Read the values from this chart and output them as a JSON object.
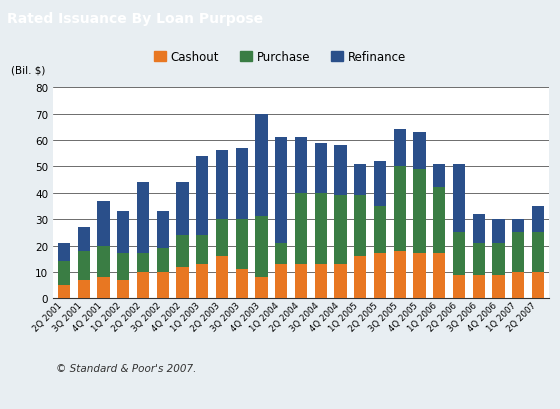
{
  "title": "Rated Issuance By Loan Purpose",
  "title_bg_color": "#6b8fa3",
  "title_text_color": "#ffffff",
  "ylabel": "(Bil. $)",
  "footer": "© Standard & Poor's 2007.",
  "categories": [
    "2Q 2001",
    "3Q 2001",
    "4Q 2001",
    "1Q 2002",
    "2Q 2002",
    "3Q 2002",
    "4Q 2002",
    "1Q 2003",
    "2Q 2003",
    "3Q 2003",
    "4Q 2003",
    "1Q 2004",
    "2Q 2004",
    "3Q 2004",
    "4Q 2004",
    "1Q 2005",
    "2Q 2005",
    "3Q 2005",
    "4Q 2005",
    "1Q 2006",
    "2Q 2006",
    "3Q 2006",
    "4Q 2006",
    "1Q 2007",
    "2Q 2007"
  ],
  "cashout": [
    5,
    7,
    8,
    7,
    10,
    10,
    12,
    13,
    16,
    11,
    8,
    13,
    13,
    13,
    13,
    16,
    17,
    18,
    17,
    17,
    9,
    9,
    9,
    10,
    10
  ],
  "purchase": [
    9,
    11,
    12,
    10,
    7,
    9,
    12,
    11,
    14,
    19,
    23,
    8,
    27,
    27,
    26,
    23,
    18,
    32,
    32,
    25,
    16,
    12,
    12,
    15,
    15
  ],
  "refinance": [
    7,
    9,
    17,
    16,
    27,
    14,
    20,
    30,
    26,
    27,
    39,
    40,
    21,
    19,
    19,
    12,
    17,
    14,
    14,
    9,
    26,
    11,
    9,
    5,
    10
  ],
  "cashout_color": "#e87722",
  "purchase_color": "#3a7d44",
  "refinance_color": "#2a4f8a",
  "outer_bg_color": "#d6e0e8",
  "inner_bg_color": "#e8eef2",
  "plot_bg_color": "#ffffff",
  "ylim": [
    0,
    80
  ],
  "yticks": [
    0,
    10,
    20,
    30,
    40,
    50,
    60,
    70,
    80
  ],
  "legend_labels": [
    "Cashout",
    "Purchase",
    "Refinance"
  ]
}
